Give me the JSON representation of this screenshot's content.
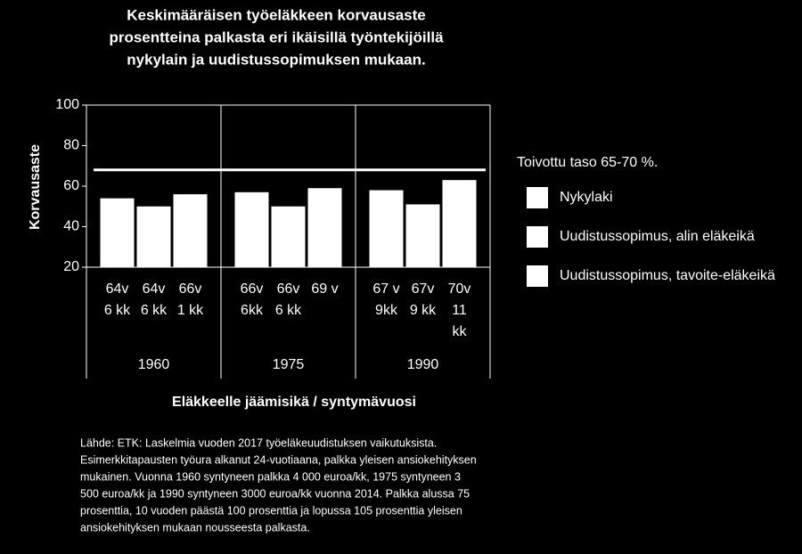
{
  "chart_data": {
    "type": "bar",
    "title": [
      "Keskimääräisen työeläkkeen korvausaste",
      "prosentteina palkasta eri ikäisillä työntekijöillä",
      "nykylain ja uudistussopimuksen mukaan."
    ],
    "y_label": "Korvausaste",
    "x_label": "Eläkkeelle jäämisikä / syntymävuosi",
    "categories": [
      "1960",
      "1975",
      "1990"
    ],
    "series": [
      {
        "name": "Nykylaki",
        "color": "#ffffff",
        "values": [
          54,
          57,
          58
        ],
        "bar_labels": [
          [
            "64v",
            "6 kk"
          ],
          [
            "66v",
            "6kk"
          ],
          [
            "67 v",
            "9kk"
          ]
        ]
      },
      {
        "name": "Uudistussopimus, alin eläkeikä",
        "color": "#ffffff",
        "values": [
          50,
          50,
          51
        ],
        "bar_labels": [
          [
            "64v",
            "6 kk"
          ],
          [
            "66v",
            "6 kk"
          ],
          [
            "67v",
            "9 kk"
          ]
        ]
      },
      {
        "name": "Uudistussopimus, tavoite-eläkeikä",
        "color": "#ffffff",
        "values": [
          56,
          59,
          63
        ],
        "bar_labels": [
          [
            "66v",
            "1 kk"
          ],
          [
            "69 v"
          ],
          [
            "70v",
            "11",
            "kk"
          ]
        ]
      }
    ],
    "reference_line": {
      "value": 68,
      "label": "Toivottu taso 65-70 %.",
      "color": "#ffffff"
    },
    "ylim": [
      20,
      100
    ],
    "yticks": [
      20,
      40,
      60,
      80,
      100
    ],
    "source": [
      "Lähde: ETK: Laskelmia vuoden 2017 työeläkeuudistuksen vaikutuksista.",
      "Esimerkkitapausten työura alkanut 24-vuotiaana, palkka yleisen ansiokehityksen",
      "mukainen. Vuonna 1960 syntyneen palkka 4 000 euroa/kk, 1975 syntyneen 3",
      "500 euroa/kk ja 1990 syntyneen 3000 euroa/kk vuonna 2014. Palkka alussa 75",
      "prosenttia, 10 vuoden päästä 100 prosenttia ja lopussa 105 prosenttia yleisen",
      "ansiokehityksen mukaan nousseesta palkasta."
    ]
  }
}
